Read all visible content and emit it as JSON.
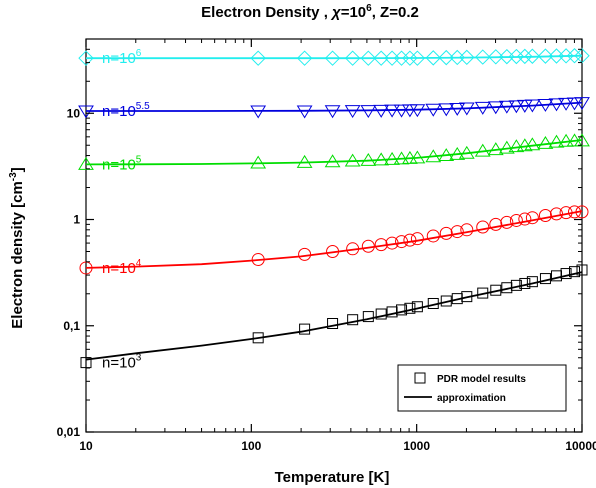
{
  "chart_data": {
    "type": "scatter",
    "title": {
      "main": "Electron Density , ",
      "chi": "χ",
      "chi_eq": "=10",
      "chi_exp": "6",
      "rest": ", Z=0.2"
    },
    "xlabel": "Temperature [K]",
    "ylabel": {
      "main": "Electron density [cm",
      "exp": "-3",
      "close": "]"
    },
    "xscale": "log",
    "yscale": "log",
    "xlim": [
      10,
      10000
    ],
    "ylim": [
      0.01,
      50
    ],
    "x_ticks": [
      {
        "value": 10,
        "label": "10"
      },
      {
        "value": 100,
        "label": "100"
      },
      {
        "value": 1000,
        "label": "1000"
      },
      {
        "value": 10000,
        "label": "10000"
      }
    ],
    "y_ticks": [
      {
        "value": 0.01,
        "label": "0,01"
      },
      {
        "value": 0.1,
        "label": "0,1"
      },
      {
        "value": 1,
        "label": "1"
      },
      {
        "value": 10,
        "label": "10"
      }
    ],
    "legend": {
      "position": "bottom-right",
      "entries": [
        {
          "label": "PDR model results",
          "style": "square-marker"
        },
        {
          "label": "approximation",
          "style": "line"
        }
      ]
    },
    "series": [
      {
        "name": "n=10^3",
        "annotation_base": "n=10",
        "annotation_exp": "3",
        "color": "#000000",
        "marker": "square",
        "x": [
          10,
          110,
          210,
          310,
          410,
          510,
          610,
          710,
          810,
          910,
          1010,
          1260,
          1510,
          1760,
          2010,
          2510,
          3010,
          3510,
          4010,
          4510,
          5010,
          6010,
          7010,
          8010,
          9010,
          10000
        ],
        "y": [
          0.045,
          0.077,
          0.093,
          0.105,
          0.114,
          0.122,
          0.129,
          0.135,
          0.141,
          0.146,
          0.151,
          0.162,
          0.171,
          0.18,
          0.188,
          0.203,
          0.216,
          0.228,
          0.24,
          0.25,
          0.26,
          0.278,
          0.295,
          0.31,
          0.323,
          0.335
        ],
        "fit_x": [
          10,
          20,
          50,
          100,
          200,
          500,
          1000,
          2000,
          5000,
          10000
        ],
        "fit_y": [
          0.048,
          0.055,
          0.065,
          0.075,
          0.088,
          0.115,
          0.145,
          0.185,
          0.25,
          0.32
        ]
      },
      {
        "name": "n=10^4",
        "annotation_base": "n=10",
        "annotation_exp": "4",
        "color": "#ff0000",
        "marker": "circle",
        "x": [
          10,
          110,
          210,
          310,
          410,
          510,
          610,
          710,
          810,
          910,
          1010,
          1260,
          1510,
          1760,
          2010,
          2510,
          3010,
          3510,
          4010,
          4510,
          5010,
          6010,
          7010,
          8010,
          9010,
          10000
        ],
        "y": [
          0.35,
          0.42,
          0.47,
          0.5,
          0.53,
          0.56,
          0.58,
          0.6,
          0.62,
          0.64,
          0.66,
          0.7,
          0.74,
          0.77,
          0.8,
          0.85,
          0.9,
          0.94,
          0.98,
          1.01,
          1.04,
          1.09,
          1.13,
          1.16,
          1.18,
          1.18
        ],
        "fit_x": [
          10,
          20,
          50,
          100,
          200,
          500,
          1000,
          2000,
          5000,
          10000
        ],
        "fit_y": [
          0.35,
          0.36,
          0.38,
          0.41,
          0.45,
          0.54,
          0.63,
          0.76,
          0.98,
          1.2
        ]
      },
      {
        "name": "n=10^5",
        "annotation_base": "n=10",
        "annotation_exp": "5",
        "color": "#00dd00",
        "marker": "triangle-up",
        "x": [
          10,
          110,
          210,
          310,
          410,
          510,
          610,
          710,
          810,
          910,
          1010,
          1260,
          1510,
          1760,
          2010,
          2510,
          3010,
          3510,
          4010,
          4510,
          5010,
          6010,
          7010,
          8010,
          9010,
          10000
        ],
        "y": [
          3.3,
          3.4,
          3.45,
          3.5,
          3.55,
          3.6,
          3.64,
          3.68,
          3.72,
          3.76,
          3.8,
          3.9,
          4.0,
          4.1,
          4.2,
          4.4,
          4.55,
          4.7,
          4.85,
          4.95,
          5.05,
          5.2,
          5.35,
          5.45,
          5.5,
          5.5
        ],
        "fit_x": [
          10,
          20,
          50,
          100,
          200,
          500,
          1000,
          2000,
          5000,
          10000
        ],
        "fit_y": [
          3.3,
          3.31,
          3.33,
          3.37,
          3.43,
          3.58,
          3.8,
          4.2,
          4.95,
          5.6
        ]
      },
      {
        "name": "n=10^5.5",
        "annotation_base": "n=10",
        "annotation_exp": "5.5",
        "color": "#0000dd",
        "marker": "triangle-down",
        "x": [
          10,
          110,
          210,
          310,
          410,
          510,
          610,
          710,
          810,
          910,
          1010,
          1260,
          1510,
          1760,
          2010,
          2510,
          3010,
          3510,
          4010,
          4510,
          5010,
          6010,
          7010,
          8010,
          9010,
          10000
        ],
        "y": [
          10.5,
          10.5,
          10.5,
          10.55,
          10.6,
          10.6,
          10.65,
          10.7,
          10.7,
          10.75,
          10.8,
          10.9,
          11.0,
          11.1,
          11.2,
          11.35,
          11.5,
          11.65,
          11.75,
          11.85,
          11.95,
          12.1,
          12.25,
          12.4,
          12.5,
          12.6
        ],
        "fit_x": [
          10,
          20,
          50,
          100,
          200,
          500,
          1000,
          2000,
          5000,
          10000
        ],
        "fit_y": [
          10.5,
          10.5,
          10.5,
          10.52,
          10.55,
          10.65,
          10.8,
          11.1,
          11.8,
          12.6
        ]
      },
      {
        "name": "n=10^6",
        "annotation_base": "n=10",
        "annotation_exp": "6",
        "color": "#22eeee",
        "marker": "diamond",
        "x": [
          10,
          110,
          210,
          310,
          410,
          510,
          610,
          710,
          810,
          910,
          1010,
          1260,
          1510,
          1760,
          2010,
          2510,
          3010,
          3510,
          4010,
          4510,
          5010,
          6010,
          7010,
          8010,
          9010,
          10000
        ],
        "y": [
          33,
          33,
          33,
          33,
          33,
          33,
          33,
          33,
          33,
          33,
          33,
          33.2,
          33.4,
          33.5,
          33.6,
          33.8,
          34,
          34.1,
          34.2,
          34.3,
          34.4,
          34.5,
          34.6,
          34.7,
          34.8,
          34.8
        ],
        "fit_x": [
          10,
          20,
          50,
          100,
          200,
          500,
          1000,
          2000,
          5000,
          10000
        ],
        "fit_y": [
          33,
          33,
          33,
          33,
          33,
          33,
          33.1,
          33.4,
          34,
          34.8
        ]
      }
    ]
  }
}
